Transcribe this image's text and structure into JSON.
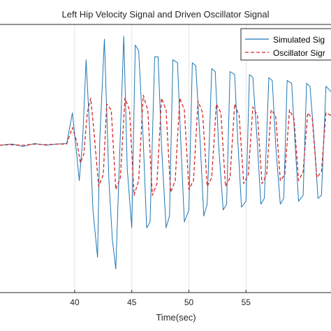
{
  "chart_data": {
    "type": "line",
    "title": "Left Hip Velocity Signal and Driven Oscillator Signal",
    "xlabel": "Time(sec)",
    "ylabel": "",
    "xlim": [
      33.4,
      62.5
    ],
    "ylim": [
      -2.5,
      2.05
    ],
    "xticks": [
      40,
      45,
      50,
      55
    ],
    "xtick_labels": [
      "40",
      "45",
      "50",
      "55"
    ],
    "grid": true,
    "legend_position": "top-right",
    "series": [
      {
        "name": "Simulated Sig",
        "color": "#1f77b4",
        "style": "solid",
        "x": [
          33.4,
          34.5,
          35.5,
          36.5,
          37.5,
          38.5,
          39.3,
          39.8,
          40.2,
          40.4,
          40.7,
          41.0,
          41.3,
          41.6,
          42.0,
          42.2,
          42.6,
          43.0,
          43.3,
          43.6,
          44.0,
          44.3,
          44.6,
          45.0,
          45.3,
          45.6,
          46.0,
          46.3,
          46.6,
          47.0,
          47.3,
          47.6,
          48.0,
          48.3,
          48.6,
          49.0,
          49.3,
          49.6,
          50.0,
          50.3,
          50.6,
          51.0,
          51.3,
          51.6,
          52.0,
          52.3,
          52.6,
          53.0,
          53.3,
          53.6,
          54.0,
          54.3,
          54.6,
          55.0,
          55.3,
          55.6,
          56.0,
          56.3,
          56.6,
          57.0,
          57.3,
          57.6,
          58.0,
          58.3,
          58.6,
          59.0,
          59.3,
          59.6,
          60.0,
          60.3,
          60.6,
          61.0,
          61.3,
          61.6,
          62.0,
          62.5
        ],
        "values": [
          0.0,
          0.02,
          -0.02,
          0.03,
          0.0,
          0.02,
          0.03,
          0.55,
          -0.2,
          -0.6,
          0.1,
          1.45,
          0.3,
          -1.1,
          -1.9,
          0.1,
          1.8,
          -0.6,
          -1.6,
          -2.1,
          0.2,
          1.85,
          -0.4,
          -1.4,
          1.7,
          1.6,
          0.1,
          -1.4,
          -1.3,
          1.5,
          1.5,
          0.0,
          -1.4,
          -1.2,
          1.45,
          1.4,
          0.0,
          -1.3,
          -1.1,
          1.4,
          1.35,
          0.0,
          -1.2,
          -1.0,
          1.3,
          1.25,
          0.0,
          -1.1,
          -1.0,
          1.25,
          1.2,
          0.0,
          -1.05,
          -0.95,
          1.2,
          1.15,
          0.0,
          -1.0,
          -0.9,
          1.15,
          1.1,
          0.0,
          -1.0,
          -0.9,
          1.1,
          1.05,
          0.0,
          -0.95,
          -0.85,
          1.05,
          1.0,
          0.0,
          -0.9,
          -0.85,
          1.0,
          0.9
        ]
      },
      {
        "name": "Oscillator Sigr",
        "color": "#d62728",
        "style": "dashed",
        "x": [
          33.4,
          34.5,
          35.5,
          36.5,
          37.5,
          38.5,
          39.3,
          39.8,
          40.2,
          40.5,
          40.8,
          41.1,
          41.4,
          41.7,
          42.1,
          42.5,
          42.8,
          43.2,
          43.6,
          44.0,
          44.4,
          44.8,
          45.2,
          45.6,
          46.0,
          46.4,
          46.8,
          47.2,
          47.6,
          48.0,
          48.4,
          48.8,
          49.2,
          49.6,
          50.0,
          50.4,
          50.8,
          51.2,
          51.6,
          52.0,
          52.4,
          52.8,
          53.2,
          53.6,
          54.0,
          54.4,
          54.8,
          55.2,
          55.6,
          56.0,
          56.4,
          56.8,
          57.2,
          57.6,
          58.0,
          58.4,
          58.8,
          59.2,
          59.6,
          60.0,
          60.4,
          60.8,
          61.2,
          61.6,
          62.0,
          62.5
        ],
        "values": [
          0.0,
          0.01,
          0.0,
          0.02,
          0.01,
          0.02,
          0.02,
          0.3,
          0.05,
          -0.3,
          -0.15,
          0.55,
          0.8,
          0.2,
          -0.7,
          -0.5,
          0.7,
          0.6,
          -0.75,
          -0.55,
          0.8,
          0.6,
          -0.85,
          -0.6,
          0.85,
          0.6,
          -0.85,
          -0.65,
          0.8,
          0.6,
          -0.8,
          -0.6,
          0.8,
          0.6,
          -0.75,
          -0.6,
          0.75,
          0.55,
          -0.7,
          -0.55,
          0.7,
          0.55,
          -0.7,
          -0.55,
          0.7,
          0.5,
          -0.65,
          -0.5,
          0.65,
          0.5,
          -0.65,
          -0.5,
          0.6,
          0.5,
          -0.6,
          -0.5,
          0.6,
          0.45,
          -0.6,
          -0.45,
          0.55,
          0.45,
          -0.55,
          -0.45,
          0.55,
          0.5
        ]
      }
    ]
  }
}
